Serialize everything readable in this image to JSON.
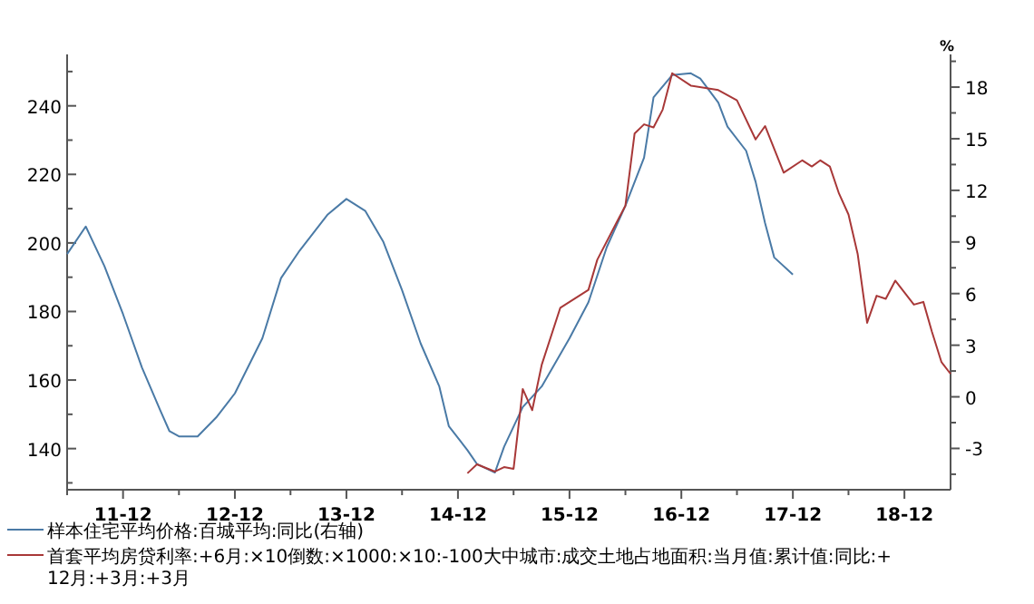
{
  "chart_data": {
    "type": "line",
    "y2label": "%",
    "legend": "bottom",
    "marker": "none",
    "line_style": "solid",
    "grid": false,
    "xlim": [
      "2011-06",
      "2019-05"
    ],
    "xticks": [
      {
        "value": "2011-06",
        "label": null
      },
      {
        "value": "2011-12",
        "label": "11-12"
      },
      {
        "value": "2012-06",
        "label": null
      },
      {
        "value": "2012-12",
        "label": "12-12"
      },
      {
        "value": "2013-06",
        "label": null
      },
      {
        "value": "2013-12",
        "label": "13-12"
      },
      {
        "value": "2014-06",
        "label": null
      },
      {
        "value": "2014-12",
        "label": "14-12"
      },
      {
        "value": "2015-06",
        "label": null
      },
      {
        "value": "2015-12",
        "label": "15-12"
      },
      {
        "value": "2016-06",
        "label": null
      },
      {
        "value": "2016-12",
        "label": "16-12"
      },
      {
        "value": "2017-06",
        "label": null
      },
      {
        "value": "2017-12",
        "label": "17-12"
      },
      {
        "value": "2018-06",
        "label": null
      },
      {
        "value": "2018-12",
        "label": "18-12"
      }
    ],
    "ylim": [
      128,
      255
    ],
    "yticks": [
      {
        "value": 130,
        "label": null
      },
      140,
      {
        "value": 150,
        "label": null
      },
      160,
      {
        "value": 170,
        "label": null
      },
      180,
      {
        "value": 190,
        "label": null
      },
      200,
      {
        "value": 210,
        "label": null
      },
      220,
      {
        "value": 230,
        "label": null
      },
      240,
      {
        "value": 250,
        "label": null
      }
    ],
    "y2lim": [
      -5.4,
      19.9
    ],
    "y2ticks": [
      {
        "value": -4.5,
        "label": null
      },
      -3,
      {
        "value": -1.5,
        "label": null
      },
      0,
      {
        "value": 1.5,
        "label": null
      },
      3,
      {
        "value": 4.5,
        "label": null
      },
      6,
      {
        "value": 7.5,
        "label": null
      },
      9,
      {
        "value": 10.5,
        "label": null
      },
      12,
      {
        "value": 13.5,
        "label": null
      },
      15,
      {
        "value": 16.5,
        "label": null
      },
      18,
      {
        "value": 19.5,
        "label": null
      }
    ],
    "series": [
      {
        "name": "样本住宅平均价格:百城平均:同比(右轴)",
        "color": "#4a7aa6",
        "axis": "y2",
        "x": [
          "2011-06",
          "2011-08",
          "2011-10",
          "2011-12",
          "2012-02",
          "2012-04",
          "2012-05",
          "2012-06",
          "2012-08",
          "2012-10",
          "2012-12",
          "2013-03",
          "2013-05",
          "2013-07",
          "2013-10",
          "2013-12",
          "2014-02",
          "2014-04",
          "2014-06",
          "2014-08",
          "2014-10",
          "2014-11",
          "2015-01",
          "2015-02",
          "2015-04",
          "2015-05",
          "2015-07",
          "2015-09",
          "2015-12",
          "2016-02",
          "2016-04",
          "2016-06",
          "2016-08",
          "2016-09",
          "2016-11",
          "2017-01",
          "2017-02",
          "2017-04",
          "2017-05",
          "2017-07",
          "2017-08",
          "2017-09",
          "2017-10",
          "2017-12"
        ],
        "values": [
          8.3,
          9.9,
          7.6,
          4.8,
          1.7,
          -0.8,
          -2.0,
          -2.3,
          -2.3,
          -1.2,
          0.2,
          3.4,
          6.9,
          8.5,
          10.6,
          11.5,
          10.8,
          9.0,
          6.2,
          3.1,
          0.6,
          -1.7,
          -3.1,
          -3.9,
          -4.4,
          -2.9,
          -0.6,
          0.6,
          3.4,
          5.5,
          8.7,
          11.1,
          13.9,
          17.4,
          18.7,
          18.8,
          18.5,
          17.1,
          15.7,
          14.3,
          12.5,
          10.1,
          8.1,
          7.1
        ]
      },
      {
        "name": "首套平均房贷利率:+6月:×10倒数:×1000:×10:-100大中城市:成交土地占地面积:当月值:累计值:同比:+12月:+3月:+3月",
        "color": "#a83838",
        "x": [
          "2015-01",
          "2015-02",
          "2015-04",
          "2015-05",
          "2015-06",
          "2015-07",
          "2015-08",
          "2015-09",
          "2015-11",
          "2016-02",
          "2016-03",
          "2016-05",
          "2016-06",
          "2016-07",
          "2016-08",
          "2016-09",
          "2016-10",
          "2016-11",
          "2017-01",
          "2017-04",
          "2017-06",
          "2017-08",
          "2017-09",
          "2017-11",
          "2018-01",
          "2018-02",
          "2018-03",
          "2018-04",
          "2018-05",
          "2018-06",
          "2018-07",
          "2018-08",
          "2018-09",
          "2018-10",
          "2018-11",
          "2019-01",
          "2019-02",
          "2019-03",
          "2019-04",
          "2019-05"
        ],
        "values": [
          132.8,
          135.4,
          133.3,
          134.6,
          134.1,
          157.4,
          151.2,
          164.4,
          181.1,
          186.3,
          195.1,
          205.6,
          210.9,
          231.9,
          234.6,
          233.7,
          238.9,
          249.5,
          245.9,
          244.6,
          241.6,
          230.2,
          234.1,
          220.5,
          224.1,
          222.3,
          224.1,
          222.3,
          214.4,
          208.3,
          196.8,
          176.7,
          184.6,
          183.7,
          189,
          182,
          182.8,
          174.1,
          165.3,
          161.8
        ]
      }
    ]
  }
}
